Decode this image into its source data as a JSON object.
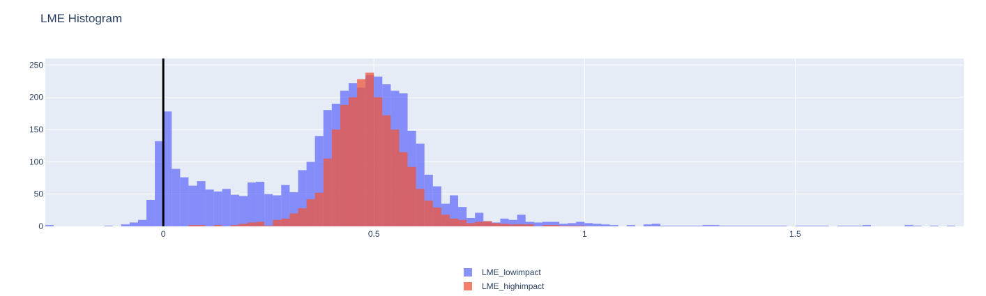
{
  "chart_data": {
    "type": "bar",
    "title": "LME Histogram",
    "xlabel": "",
    "ylabel": "",
    "xlim": [
      -0.28,
      1.9
    ],
    "ylim": [
      0,
      260
    ],
    "x_ticks": [
      0,
      0.5,
      1,
      1.5
    ],
    "x_tick_labels": [
      "0",
      "0.5",
      "1",
      "1.5"
    ],
    "y_ticks": [
      0,
      50,
      100,
      150,
      200,
      250
    ],
    "y_tick_labels": [
      "0",
      "50",
      "100",
      "150",
      "200",
      "250"
    ],
    "grid": true,
    "legend_position": "bottom-center",
    "bin_width": 0.02,
    "reference_line": {
      "x": 0,
      "color": "#000000"
    },
    "series": [
      {
        "name": "LME_lowimpact",
        "color": "#636efa",
        "bins": [
          [
            -0.28,
            2
          ],
          [
            -0.14,
            1
          ],
          [
            -0.1,
            3
          ],
          [
            -0.08,
            6
          ],
          [
            -0.06,
            10
          ],
          [
            -0.04,
            41
          ],
          [
            -0.02,
            132
          ],
          [
            0.0,
            178
          ],
          [
            0.02,
            89
          ],
          [
            0.04,
            76
          ],
          [
            0.06,
            63
          ],
          [
            0.08,
            70
          ],
          [
            0.1,
            57
          ],
          [
            0.12,
            54
          ],
          [
            0.14,
            58
          ],
          [
            0.16,
            49
          ],
          [
            0.18,
            47
          ],
          [
            0.2,
            68
          ],
          [
            0.22,
            69
          ],
          [
            0.24,
            50
          ],
          [
            0.26,
            48
          ],
          [
            0.28,
            64
          ],
          [
            0.3,
            53
          ],
          [
            0.32,
            87
          ],
          [
            0.34,
            100
          ],
          [
            0.36,
            140
          ],
          [
            0.38,
            180
          ],
          [
            0.4,
            190
          ],
          [
            0.42,
            210
          ],
          [
            0.44,
            222
          ],
          [
            0.46,
            215
          ],
          [
            0.48,
            234
          ],
          [
            0.5,
            232
          ],
          [
            0.52,
            220
          ],
          [
            0.54,
            210
          ],
          [
            0.56,
            206
          ],
          [
            0.58,
            148
          ],
          [
            0.6,
            128
          ],
          [
            0.62,
            80
          ],
          [
            0.64,
            62
          ],
          [
            0.66,
            35
          ],
          [
            0.68,
            48
          ],
          [
            0.7,
            30
          ],
          [
            0.72,
            13
          ],
          [
            0.74,
            21
          ],
          [
            0.76,
            8
          ],
          [
            0.78,
            6
          ],
          [
            0.8,
            12
          ],
          [
            0.82,
            10
          ],
          [
            0.84,
            18
          ],
          [
            0.86,
            7
          ],
          [
            0.88,
            6
          ],
          [
            0.9,
            7
          ],
          [
            0.92,
            7
          ],
          [
            0.94,
            4
          ],
          [
            0.96,
            5
          ],
          [
            0.98,
            7
          ],
          [
            1.0,
            5
          ],
          [
            1.02,
            4
          ],
          [
            1.04,
            3
          ],
          [
            1.06,
            2
          ],
          [
            1.1,
            2
          ],
          [
            1.14,
            3
          ],
          [
            1.16,
            4
          ],
          [
            1.18,
            1
          ],
          [
            1.2,
            1
          ],
          [
            1.22,
            1
          ],
          [
            1.24,
            1
          ],
          [
            1.26,
            1
          ],
          [
            1.28,
            2
          ],
          [
            1.3,
            2
          ],
          [
            1.32,
            1
          ],
          [
            1.34,
            1
          ],
          [
            1.36,
            1
          ],
          [
            1.38,
            1
          ],
          [
            1.4,
            1
          ],
          [
            1.42,
            1
          ],
          [
            1.44,
            1
          ],
          [
            1.46,
            1
          ],
          [
            1.5,
            1
          ],
          [
            1.52,
            1
          ],
          [
            1.54,
            1
          ],
          [
            1.56,
            1
          ],
          [
            1.6,
            1
          ],
          [
            1.62,
            1
          ],
          [
            1.64,
            1
          ],
          [
            1.66,
            2
          ],
          [
            1.76,
            2
          ],
          [
            1.78,
            1
          ],
          [
            1.82,
            1
          ],
          [
            1.86,
            1
          ]
        ]
      },
      {
        "name": "LME_highimpact",
        "color": "#ef553b",
        "bins": [
          [
            0.06,
            2
          ],
          [
            0.08,
            2
          ],
          [
            0.12,
            2
          ],
          [
            0.16,
            2
          ],
          [
            0.18,
            4
          ],
          [
            0.2,
            6
          ],
          [
            0.22,
            7
          ],
          [
            0.24,
            1
          ],
          [
            0.26,
            10
          ],
          [
            0.28,
            12
          ],
          [
            0.3,
            20
          ],
          [
            0.32,
            28
          ],
          [
            0.34,
            42
          ],
          [
            0.36,
            52
          ],
          [
            0.38,
            105
          ],
          [
            0.4,
            150
          ],
          [
            0.42,
            188
          ],
          [
            0.44,
            200
          ],
          [
            0.46,
            228
          ],
          [
            0.48,
            238
          ],
          [
            0.5,
            200
          ],
          [
            0.52,
            172
          ],
          [
            0.54,
            150
          ],
          [
            0.56,
            115
          ],
          [
            0.58,
            92
          ],
          [
            0.6,
            58
          ],
          [
            0.62,
            40
          ],
          [
            0.64,
            29
          ],
          [
            0.66,
            18
          ],
          [
            0.68,
            12
          ],
          [
            0.7,
            10
          ],
          [
            0.72,
            5
          ],
          [
            0.74,
            7
          ],
          [
            0.76,
            8
          ],
          [
            0.78,
            5
          ],
          [
            0.8,
            4
          ],
          [
            0.82,
            3
          ],
          [
            0.84,
            3
          ],
          [
            0.86,
            3
          ],
          [
            0.9,
            2
          ],
          [
            0.92,
            2
          ],
          [
            0.94,
            1
          ],
          [
            0.96,
            1
          ],
          [
            0.98,
            1
          ]
        ]
      }
    ]
  }
}
